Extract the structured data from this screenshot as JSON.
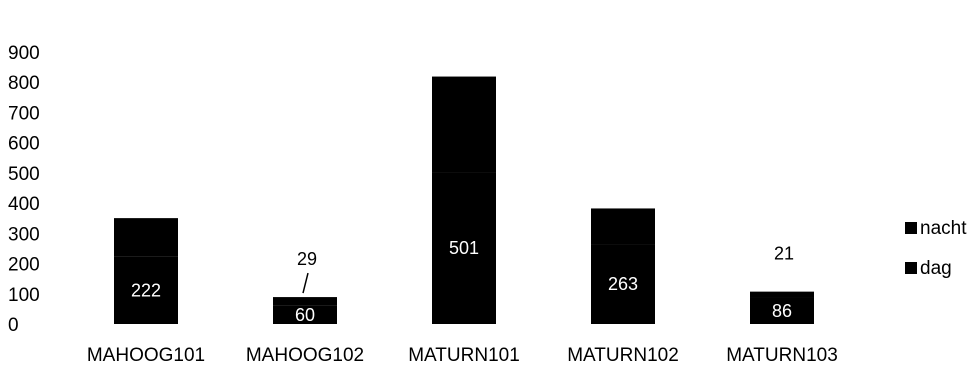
{
  "chart_data": {
    "type": "bar",
    "stacked": true,
    "categories": [
      "MAHOOG101",
      "MAHOOG102",
      "MATURN101",
      "MATURN102",
      "MATURN103"
    ],
    "series": [
      {
        "name": "dag",
        "values": [
          222,
          60,
          501,
          263,
          86
        ],
        "color": "#000000"
      },
      {
        "name": "nacht",
        "values": [
          128,
          29,
          317,
          119,
          21
        ],
        "color": "#000000"
      }
    ],
    "data_labels": {
      "dag": [
        "222",
        "60",
        "501",
        "263",
        "86"
      ],
      "nacht": [
        "",
        "29",
        "",
        "",
        "21"
      ]
    },
    "ylim": [
      0,
      900
    ],
    "yticks": [
      "0",
      "100",
      "200",
      "300",
      "400",
      "500",
      "600",
      "700",
      "800",
      "900"
    ],
    "legend": {
      "position": "right",
      "entries": [
        "nacht",
        "dag"
      ]
    },
    "grid": false,
    "title": "",
    "xlabel": "",
    "ylabel": ""
  }
}
